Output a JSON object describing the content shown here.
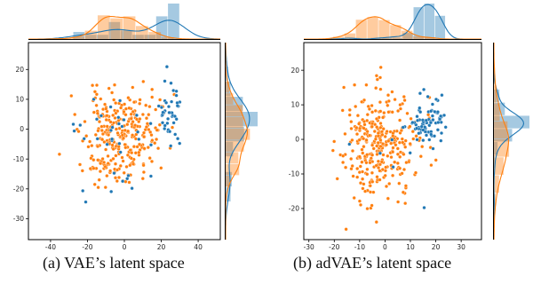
{
  "colors": {
    "vae": "#1f77b4",
    "normal": "#ff7f0e"
  },
  "captions": {
    "a": "(a) VAE’s latent space",
    "b": "(b) adVAE’s latent space"
  },
  "chart_data": [
    {
      "type": "scatter",
      "title": "",
      "xlabel": "",
      "ylabel": "",
      "xlim": [
        -52,
        52
      ],
      "ylim": [
        -37,
        29
      ],
      "xticks": [
        -40,
        -20,
        0,
        20,
        40
      ],
      "yticks": [
        -30,
        -20,
        -10,
        0,
        10,
        20
      ],
      "grid": false,
      "marginals": "histogram + kde on top and right",
      "series": [
        {
          "color": "#ff7f0e",
          "clusters": [
            {
              "cx": -2,
              "cy": 0,
              "sx": 10,
              "sy": 6.5,
              "n": 240
            },
            {
              "cx": -4,
              "cy": -13,
              "sx": 9,
              "sy": 3.2,
              "n": 60
            }
          ]
        },
        {
          "color": "#1f77b4",
          "clusters": [
            {
              "cx": 24,
              "cy": 6,
              "sx": 3,
              "sy": 5,
              "n": 38
            },
            {
              "cx": -3,
              "cy": -4,
              "sx": 12,
              "sy": 9,
              "n": 38
            }
          ]
        }
      ]
    },
    {
      "type": "scatter",
      "title": "",
      "xlabel": "",
      "ylabel": "",
      "xlim": [
        -32,
        38
      ],
      "ylim": [
        -29,
        28
      ],
      "xticks": [
        -30,
        -20,
        -10,
        0,
        10,
        20,
        30
      ],
      "yticks": [
        -20,
        -10,
        0,
        10,
        20
      ],
      "grid": false,
      "marginals": "histogram + kde on top and right",
      "series": [
        {
          "color": "#ff7f0e",
          "clusters": [
            {
              "cx": -2,
              "cy": -1,
              "sx": 7.5,
              "sy": 7.5,
              "n": 320
            }
          ]
        },
        {
          "color": "#1f77b4",
          "clusters": [
            {
              "cx": 17,
              "cy": 5,
              "sx": 3.2,
              "sy": 3.6,
              "n": 75
            },
            {
              "cx": 4,
              "cy": -3,
              "sx": 9,
              "sy": 7,
              "n": 8
            }
          ]
        }
      ]
    }
  ]
}
